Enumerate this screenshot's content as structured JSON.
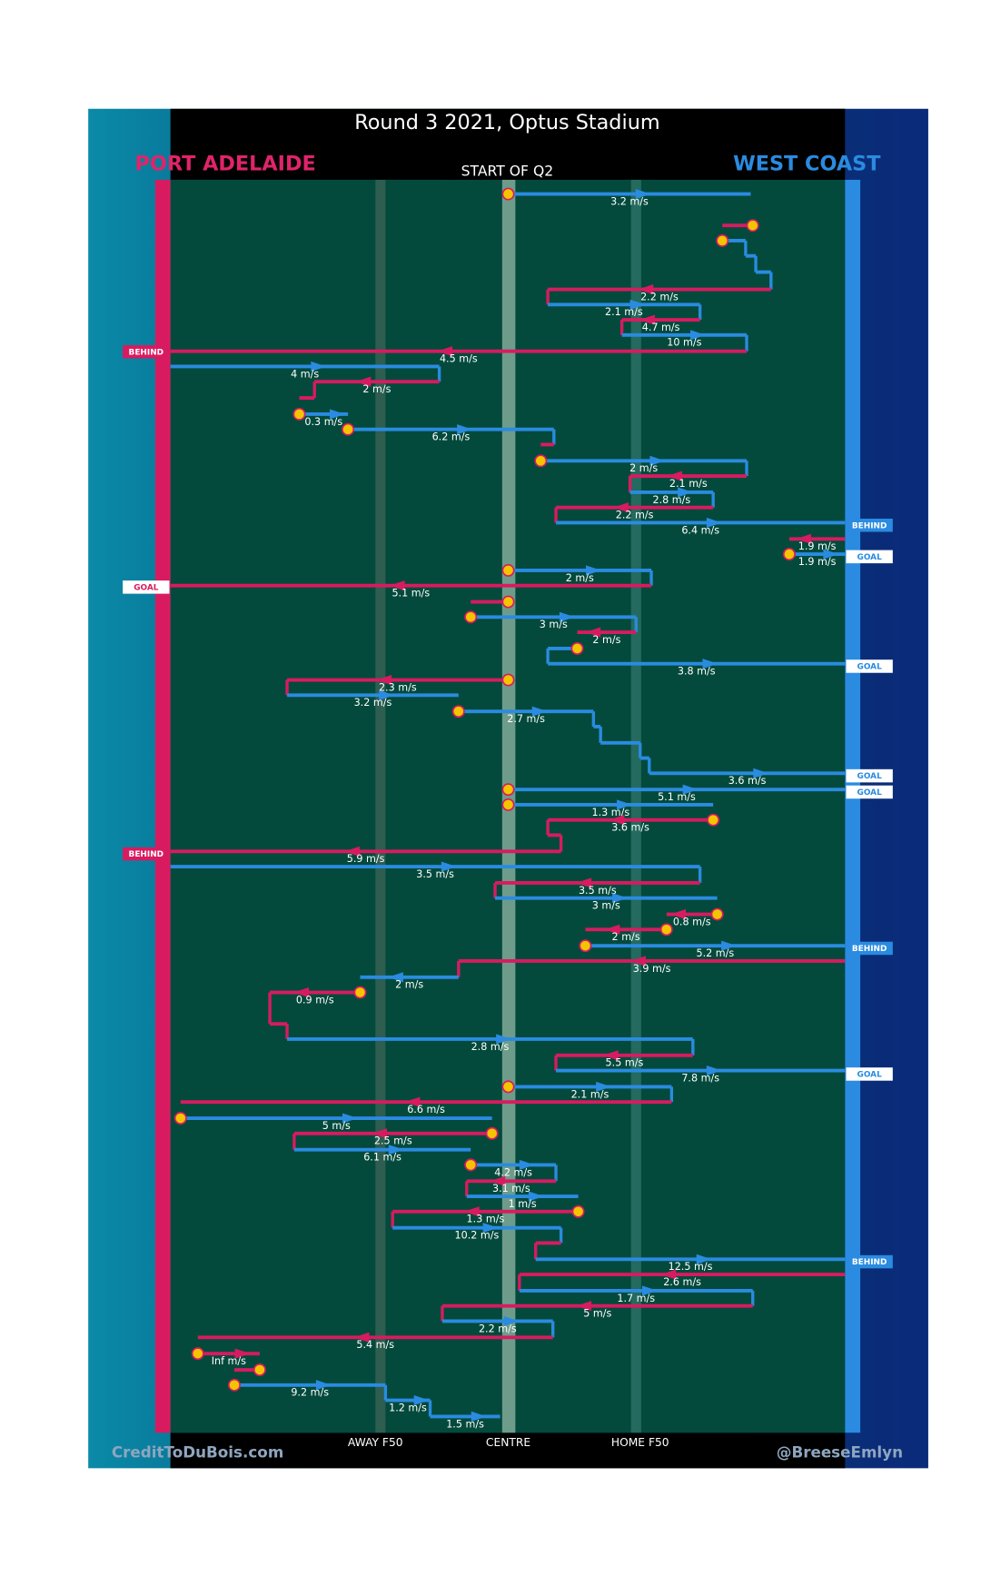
{
  "title": "Round 3 2021, Optus Stadium",
  "teams": {
    "home": "PORT ADELAIDE",
    "away": "WEST COAST"
  },
  "period": "START OF Q2",
  "zones": [
    "AWAY F50",
    "CENTRE",
    "HOME F50"
  ],
  "credits": {
    "left": "CreditToDuBois.com",
    "right": "@BreeseEmlyn"
  },
  "speeds": [
    "3.2 m/s",
    "2.2 m/s",
    "2.1 m/s",
    "4.7 m/s",
    "10 m/s",
    "4.5 m/s",
    "4 m/s",
    "2 m/s",
    "0.3 m/s",
    "6.2 m/s",
    "2 m/s",
    "2.1 m/s",
    "2.8 m/s",
    "2.2 m/s",
    "6.4 m/s",
    "1.9 m/s",
    "1.9 m/s",
    "2 m/s",
    "5.1 m/s",
    "3 m/s",
    "2 m/s",
    "3.8 m/s",
    "2.3 m/s",
    "3.2 m/s",
    "2.7 m/s",
    "3.6 m/s",
    "5.1 m/s",
    "1.3 m/s",
    "3.6 m/s",
    "5.9 m/s",
    "3.5 m/s",
    "3.5 m/s",
    "3 m/s",
    "0.8 m/s",
    "2 m/s",
    "5.2 m/s",
    "3.9 m/s",
    "2 m/s",
    "0.9 m/s",
    "2.8 m/s",
    "5.5 m/s",
    "7.8 m/s",
    "2.1 m/s",
    "6.6 m/s",
    "5 m/s",
    "2.5 m/s",
    "6.1 m/s",
    "4.2 m/s",
    "3.1 m/s",
    "1 m/s",
    "1.3 m/s",
    "10.2 m/s",
    "12.5 m/s",
    "2.6 m/s",
    "1.7 m/s",
    "5 m/s",
    "2.2 m/s",
    "5.4 m/s",
    "Inf m/s",
    "9.2 m/s",
    "1.2 m/s",
    "1.5 m/s"
  ],
  "scores": [
    "BEHIND",
    "BEHIND",
    "GOAL",
    "GOAL",
    "GOAL",
    "GOAL",
    "GOAL",
    "BEHIND",
    "BEHIND",
    "GOAL",
    "BEHIND"
  ]
}
